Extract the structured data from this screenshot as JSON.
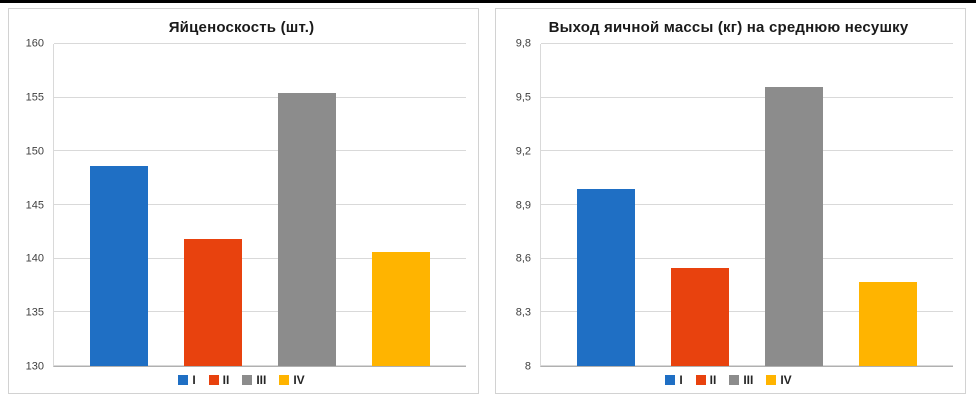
{
  "chart_data": [
    {
      "type": "bar",
      "title": "Яйценоскость (шт.)",
      "categories": [
        "I",
        "II",
        "III",
        "IV"
      ],
      "values": [
        148.6,
        141.8,
        155.4,
        140.6
      ],
      "xlabel": "",
      "ylabel": "",
      "ylim": [
        130,
        160
      ],
      "ytick_values": [
        130,
        135,
        140,
        145,
        150,
        155,
        160
      ],
      "yticks": [
        "130",
        "135",
        "140",
        "145",
        "150",
        "155",
        "160"
      ],
      "grid": true,
      "legend_position": "bottom",
      "colors": [
        "#1f6fc4",
        "#e8420e",
        "#8c8c8c",
        "#ffb400"
      ]
    },
    {
      "type": "bar",
      "title": "Выход яичной массы (кг) на среднюю несушку",
      "categories": [
        "I",
        "II",
        "III",
        "IV"
      ],
      "values": [
        8.99,
        8.55,
        9.56,
        8.47
      ],
      "xlabel": "",
      "ylabel": "",
      "ylim": [
        8,
        9.8
      ],
      "ytick_values": [
        8,
        8.3,
        8.6,
        8.9,
        9.2,
        9.5,
        9.8
      ],
      "yticks": [
        "8",
        "8,3",
        "8,6",
        "8,9",
        "9,2",
        "9,5",
        "9,8"
      ],
      "grid": true,
      "legend_position": "bottom",
      "colors": [
        "#1f6fc4",
        "#e8420e",
        "#8c8c8c",
        "#ffb400"
      ]
    }
  ]
}
